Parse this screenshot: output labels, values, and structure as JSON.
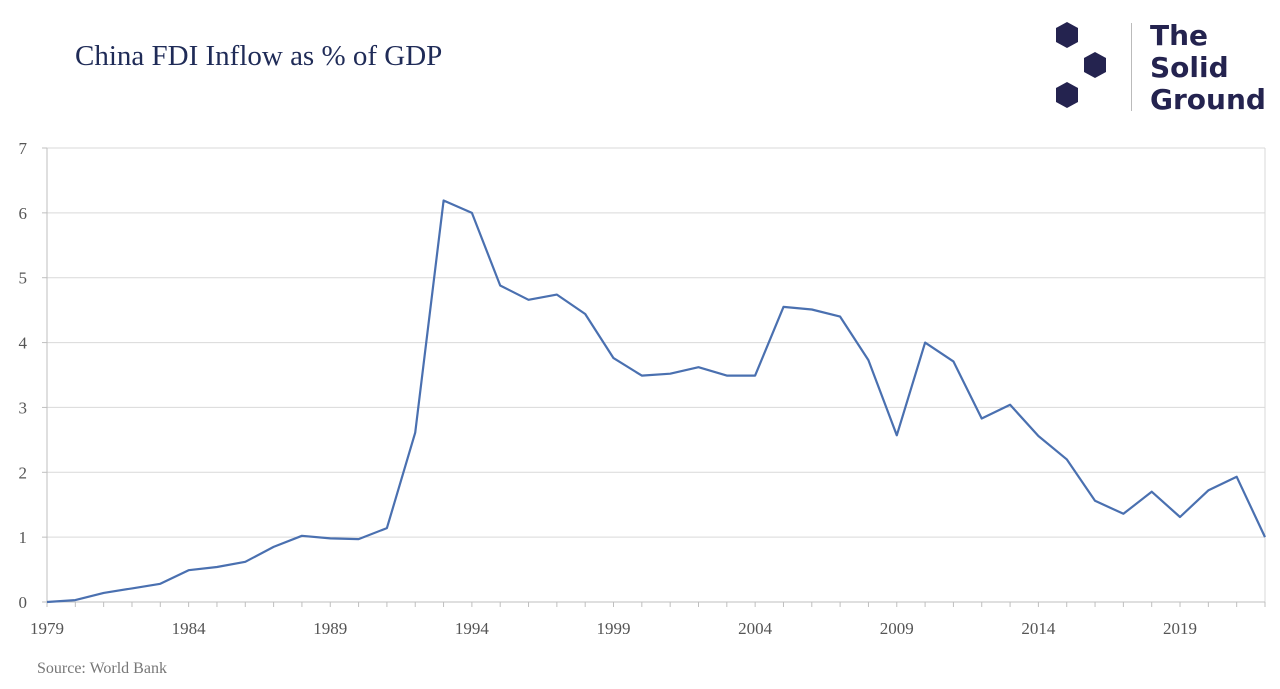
{
  "header": {
    "title": "China FDI Inflow as % of GDP",
    "source": "Source: World Bank"
  },
  "logo": {
    "lines": [
      "The",
      "Solid",
      "Ground"
    ],
    "color": "#24234f"
  },
  "colors": {
    "line": "#4a70b0",
    "grid": "#d9d9d9",
    "title": "#1f2b57"
  },
  "chart_data": {
    "type": "line",
    "title": "China FDI Inflow as % of GDP",
    "xlabel": "",
    "ylabel": "",
    "x": [
      1979,
      1980,
      1981,
      1982,
      1983,
      1984,
      1985,
      1986,
      1987,
      1988,
      1989,
      1990,
      1991,
      1992,
      1993,
      1994,
      1995,
      1996,
      1997,
      1998,
      1999,
      2000,
      2001,
      2002,
      2003,
      2004,
      2005,
      2006,
      2007,
      2008,
      2009,
      2010,
      2011,
      2012,
      2013,
      2014,
      2015,
      2016,
      2017,
      2018,
      2019,
      2020,
      2021,
      2022
    ],
    "series": [
      {
        "values": [
          0.0,
          0.03,
          0.14,
          0.21,
          0.28,
          0.49,
          0.54,
          0.62,
          0.85,
          1.02,
          0.98,
          0.97,
          1.14,
          2.61,
          6.19,
          6.0,
          4.88,
          4.66,
          4.74,
          4.44,
          3.76,
          3.49,
          3.52,
          3.62,
          3.49,
          3.49,
          4.55,
          4.51,
          4.4,
          3.73,
          2.57,
          4.0,
          3.71,
          2.83,
          3.04,
          2.56,
          2.2,
          1.56,
          1.36,
          1.7,
          1.31,
          1.72,
          1.93,
          1.0
        ]
      }
    ],
    "xlim": [
      1979,
      2022
    ],
    "ylim": [
      0,
      7
    ],
    "xticks": [
      1979,
      1984,
      1989,
      1994,
      1999,
      2004,
      2009,
      2014,
      2019
    ],
    "yticks": [
      0,
      1,
      2,
      3,
      4,
      5,
      6,
      7
    ],
    "grid": true,
    "legend": "none"
  }
}
